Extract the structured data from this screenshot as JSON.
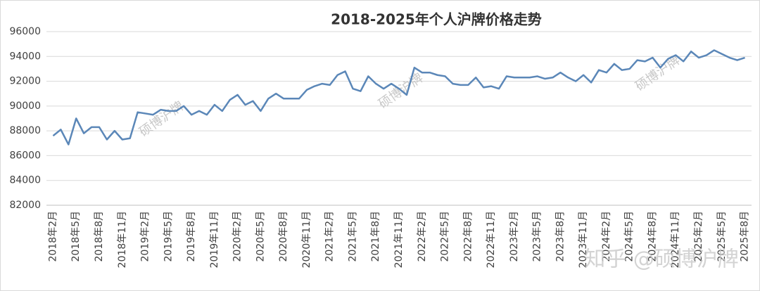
{
  "chart_data": {
    "type": "line",
    "title": "2018-2025年个人沪牌价格走势",
    "watermark": "硕博沪牌",
    "credit": "知乎 @硕博沪牌",
    "categories": [
      "2018年2月",
      null,
      null,
      "2018年5月",
      null,
      null,
      "2018年8月",
      null,
      null,
      "2018年11月",
      null,
      null,
      "2019年2月",
      null,
      null,
      "2019年5月",
      null,
      null,
      "2019年8月",
      null,
      null,
      "2019年11月",
      null,
      null,
      "2020年2月",
      null,
      null,
      "2020年5月",
      null,
      null,
      "2020年8月",
      null,
      null,
      "2020年11月",
      null,
      null,
      "2021年2月",
      null,
      null,
      "2021年5月",
      null,
      null,
      "2021年8月",
      null,
      null,
      "2021年11月",
      null,
      null,
      "2022年2月",
      null,
      null,
      "2022年5月",
      null,
      null,
      "2022年8月",
      null,
      null,
      "2022年11月",
      null,
      null,
      "2023年2月",
      null,
      null,
      "2023年5月",
      null,
      null,
      "2023年8月",
      null,
      null,
      "2023年11月",
      null,
      null,
      "2024年2月",
      null,
      null,
      "2024年5月",
      null,
      null,
      "2024年8月",
      null,
      null,
      "2024年11月",
      null,
      null,
      "2025年2月",
      null,
      null,
      "2025年5月",
      null,
      null,
      "2025年8月"
    ],
    "series": [
      {
        "name": "个人沪牌价格",
        "color": "#5b87b8",
        "values": [
          87600,
          88100,
          86900,
          89000,
          87800,
          88300,
          88300,
          87300,
          88000,
          87300,
          87400,
          89500,
          89400,
          89300,
          89700,
          89600,
          89600,
          90000,
          89300,
          89600,
          89300,
          90100,
          89600,
          90500,
          90900,
          90100,
          90400,
          89600,
          90600,
          91000,
          90600,
          90600,
          90600,
          91300,
          91600,
          91800,
          91700,
          92500,
          92800,
          91400,
          91200,
          92400,
          91800,
          91400,
          91800,
          91400,
          90900,
          93100,
          92700,
          92700,
          92500,
          92400,
          91800,
          91700,
          91700,
          92300,
          91500,
          91600,
          91400,
          92400,
          92300,
          92300,
          92300,
          92400,
          92200,
          92300,
          92700,
          92300,
          92000,
          92500,
          91900,
          92900,
          92700,
          93400,
          92900,
          93000,
          93700,
          93600,
          93900,
          93100,
          93800,
          94100,
          93600,
          94400,
          93900,
          94100,
          94500,
          94200,
          93900,
          93700,
          93900
        ]
      }
    ],
    "ylim": [
      82000,
      96000
    ],
    "yticks": [
      82000,
      84000,
      86000,
      88000,
      90000,
      92000,
      94000,
      96000
    ],
    "grid": true
  }
}
